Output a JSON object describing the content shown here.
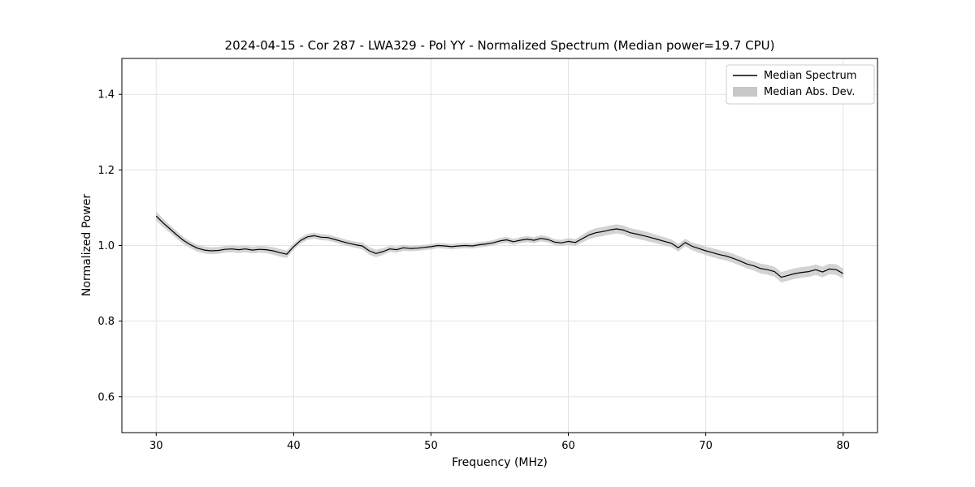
{
  "figure": {
    "background": "#ffffff"
  },
  "chart_data": {
    "type": "line",
    "title": "2024-04-15 - Cor 287 - LWA329 - Pol YY - Normalized Spectrum (Median power=19.7 CPU)",
    "xlabel": "Frequency (MHz)",
    "ylabel": "Normalized Power",
    "xlim": [
      27.5,
      82.5
    ],
    "ylim": [
      0.505,
      1.495
    ],
    "xticks": [
      30,
      40,
      50,
      60,
      70,
      80
    ],
    "yticks": [
      0.6,
      0.8,
      1.0,
      1.2,
      1.4
    ],
    "grid": true,
    "colors": {
      "line": "#000000",
      "band": "#c8c8c8",
      "grid": "#e3e3e3",
      "spine": "#000000",
      "legend_border": "#cccccc"
    },
    "legend": {
      "position": "upper right",
      "entries": [
        {
          "label": "Median Spectrum",
          "type": "line",
          "color": "#000000"
        },
        {
          "label": "Median Abs. Dev.",
          "type": "band",
          "color": "#c8c8c8"
        }
      ]
    },
    "series": [
      {
        "name": "Median Spectrum",
        "x": [
          30.0,
          30.5,
          31.0,
          31.5,
          32.0,
          32.5,
          33.0,
          33.5,
          34.0,
          34.5,
          35.0,
          35.5,
          36.0,
          36.5,
          37.0,
          37.5,
          38.0,
          38.5,
          39.0,
          39.5,
          40.0,
          40.5,
          41.0,
          41.5,
          42.0,
          42.5,
          43.0,
          43.5,
          44.0,
          44.5,
          45.0,
          45.5,
          46.0,
          46.5,
          47.0,
          47.5,
          48.0,
          48.5,
          49.0,
          49.5,
          50.0,
          50.5,
          51.0,
          51.5,
          52.0,
          52.5,
          53.0,
          53.5,
          54.0,
          54.5,
          55.0,
          55.5,
          56.0,
          56.5,
          57.0,
          57.5,
          58.0,
          58.5,
          59.0,
          59.5,
          60.0,
          60.5,
          61.0,
          61.5,
          62.0,
          62.5,
          63.0,
          63.5,
          64.0,
          64.5,
          65.0,
          65.5,
          66.0,
          66.5,
          67.0,
          67.5,
          68.0,
          68.5,
          69.0,
          69.5,
          70.0,
          70.5,
          71.0,
          71.5,
          72.0,
          72.5,
          73.0,
          73.5,
          74.0,
          74.5,
          75.0,
          75.5,
          76.0,
          76.5,
          77.0,
          77.5,
          78.0,
          78.5,
          79.0,
          79.5,
          80.0
        ],
        "y": [
          1.078,
          1.06,
          1.044,
          1.028,
          1.013,
          1.002,
          0.993,
          0.988,
          0.986,
          0.987,
          0.99,
          0.991,
          0.989,
          0.991,
          0.988,
          0.99,
          0.989,
          0.986,
          0.981,
          0.977,
          0.997,
          1.013,
          1.023,
          1.026,
          1.022,
          1.021,
          1.016,
          1.011,
          1.006,
          1.002,
          0.999,
          0.986,
          0.979,
          0.984,
          0.991,
          0.989,
          0.994,
          0.992,
          0.993,
          0.995,
          0.997,
          1.0,
          0.999,
          0.997,
          0.999,
          1.0,
          0.999,
          1.002,
          1.004,
          1.007,
          1.012,
          1.015,
          1.01,
          1.014,
          1.017,
          1.014,
          1.019,
          1.016,
          1.009,
          1.007,
          1.011,
          1.008,
          1.018,
          1.028,
          1.034,
          1.037,
          1.041,
          1.044,
          1.041,
          1.034,
          1.03,
          1.026,
          1.021,
          1.016,
          1.011,
          1.006,
          0.994,
          1.008,
          0.998,
          0.992,
          0.986,
          0.981,
          0.976,
          0.972,
          0.966,
          0.959,
          0.951,
          0.946,
          0.939,
          0.936,
          0.931,
          0.916,
          0.921,
          0.926,
          0.929,
          0.931,
          0.936,
          0.93,
          0.938,
          0.936,
          0.926
        ]
      },
      {
        "name": "Median Abs. Dev.",
        "band_halfwidth": [
          0.012,
          0.011,
          0.01,
          0.01,
          0.009,
          0.009,
          0.009,
          0.009,
          0.009,
          0.009,
          0.009,
          0.009,
          0.009,
          0.009,
          0.009,
          0.009,
          0.009,
          0.01,
          0.01,
          0.01,
          0.008,
          0.008,
          0.008,
          0.008,
          0.008,
          0.008,
          0.008,
          0.008,
          0.008,
          0.008,
          0.009,
          0.01,
          0.01,
          0.009,
          0.008,
          0.008,
          0.008,
          0.007,
          0.007,
          0.007,
          0.007,
          0.007,
          0.007,
          0.007,
          0.007,
          0.007,
          0.007,
          0.007,
          0.007,
          0.007,
          0.008,
          0.008,
          0.008,
          0.008,
          0.008,
          0.008,
          0.008,
          0.008,
          0.008,
          0.008,
          0.009,
          0.009,
          0.01,
          0.011,
          0.012,
          0.012,
          0.012,
          0.012,
          0.012,
          0.012,
          0.012,
          0.012,
          0.012,
          0.011,
          0.011,
          0.01,
          0.01,
          0.01,
          0.01,
          0.011,
          0.011,
          0.012,
          0.012,
          0.012,
          0.012,
          0.012,
          0.012,
          0.012,
          0.013,
          0.013,
          0.013,
          0.014,
          0.014,
          0.014,
          0.014,
          0.014,
          0.014,
          0.014,
          0.014,
          0.014,
          0.013
        ]
      }
    ]
  }
}
